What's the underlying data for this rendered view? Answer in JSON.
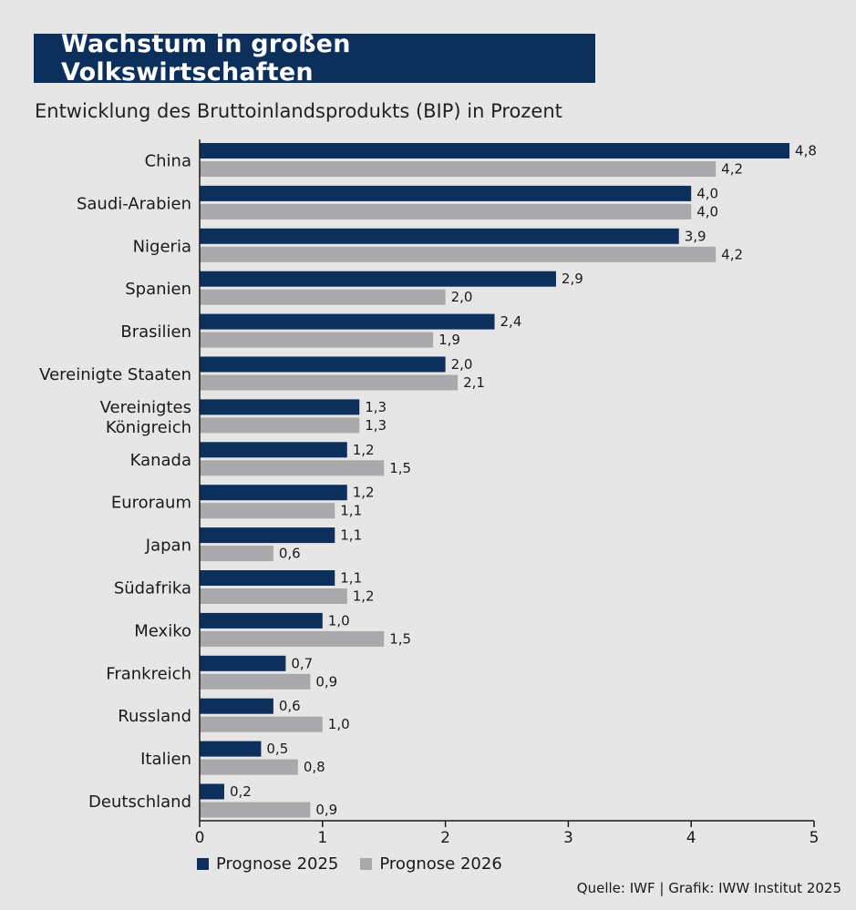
{
  "title": "Wachstum in großen Volkswirtschaften",
  "subtitle": "Entwicklung des Bruttoinlandsprodukts (BIP) in Prozent",
  "source": "Quelle: IWF | Grafik: IWW Institut 2025",
  "colors": {
    "series1": "#0c2f5c",
    "series2": "#a9a9ab",
    "background": "#e6e6e6"
  },
  "chart_data": {
    "type": "bar",
    "orientation": "horizontal",
    "title": "Wachstum in großen Volkswirtschaften",
    "subtitle": "Entwicklung des Bruttoinlandsprodukts (BIP) in Prozent",
    "categories": [
      [
        "China"
      ],
      [
        "Saudi-Arabien"
      ],
      [
        "Nigeria"
      ],
      [
        "Spanien"
      ],
      [
        "Brasilien"
      ],
      [
        "Vereinigte Staaten"
      ],
      [
        "Vereinigtes",
        "Königreich"
      ],
      [
        "Kanada"
      ],
      [
        "Euroraum"
      ],
      [
        "Japan"
      ],
      [
        "Südafrika"
      ],
      [
        "Mexiko"
      ],
      [
        "Frankreich"
      ],
      [
        "Russland"
      ],
      [
        "Italien"
      ],
      [
        "Deutschland"
      ]
    ],
    "series": [
      {
        "name": "Prognose 2025",
        "values": [
          4.8,
          4.0,
          3.9,
          2.9,
          2.4,
          2.0,
          1.3,
          1.2,
          1.2,
          1.1,
          1.1,
          1.0,
          0.7,
          0.6,
          0.5,
          0.2
        ],
        "labels": [
          "4,8",
          "4,0",
          "3,9",
          "2,9",
          "2,4",
          "2,0",
          "1,3",
          "1,2",
          "1,2",
          "1,1",
          "1,1",
          "1,0",
          "0,7",
          "0,6",
          "0,5",
          "0,2"
        ]
      },
      {
        "name": "Prognose 2026",
        "values": [
          4.2,
          4.0,
          4.2,
          2.0,
          1.9,
          2.1,
          1.3,
          1.5,
          1.1,
          0.6,
          1.2,
          1.5,
          0.9,
          1.0,
          0.8,
          0.9
        ],
        "labels": [
          "4,2",
          "4,0",
          "4,2",
          "2,0",
          "1,9",
          "2,1",
          "1,3",
          "1,5",
          "1,1",
          "0,6",
          "1,2",
          "1,5",
          "0,9",
          "1,0",
          "0,8",
          "0,9"
        ]
      }
    ],
    "xlim": [
      0,
      5
    ],
    "xticks": [
      "0",
      "1",
      "2",
      "3",
      "4",
      "5"
    ],
    "grid": false,
    "legend": "bottom-left"
  }
}
